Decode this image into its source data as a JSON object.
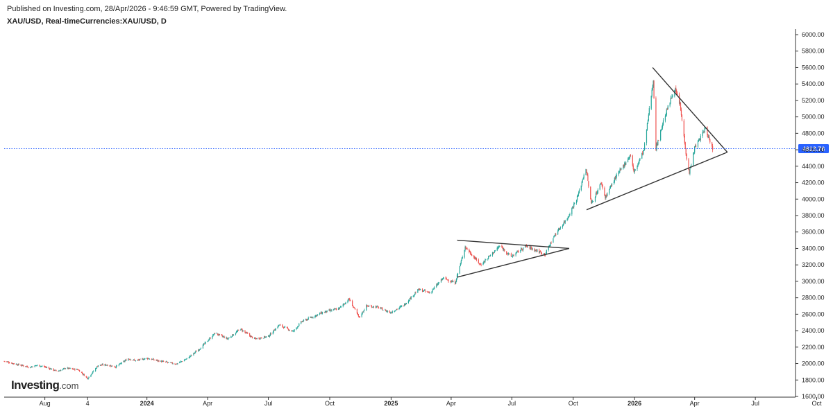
{
  "header": {
    "publish_line": "Published on Investing.com, 28/Apr/2026 - 9:46:59 GMT, Powered by TradingView.",
    "symbol_line": "XAU/USD, Real-timeCurrencies:XAU/USD, D"
  },
  "logo": {
    "brand": "Investing",
    "suffix": ".com"
  },
  "colors": {
    "up": "#26a69a",
    "down": "#ef5350",
    "price_line": "#2962ff",
    "price_label_bg": "#2962ff",
    "axis": "#333333",
    "trendline": "#333333"
  },
  "chart_data": {
    "type": "candlestick",
    "title": "XAU/USD, Real-timeCurrencies:XAU/USD, D",
    "ylim": [
      1600,
      6000
    ],
    "y_ticks": [
      "6000.00",
      "5800.00",
      "5600.00",
      "5400.00",
      "5200.00",
      "5000.00",
      "4800.00",
      "4600.00",
      "4400.00",
      "4200.00",
      "4000.00",
      "3800.00",
      "3600.00",
      "3400.00",
      "3200.00",
      "3000.00",
      "2800.00",
      "2600.00",
      "2400.00",
      "2200.00",
      "2000.00",
      "1800.00",
      "1600.00"
    ],
    "y_tick_values": [
      6000,
      5800,
      5600,
      5400,
      5200,
      5000,
      4800,
      4600,
      4400,
      4200,
      4000,
      3800,
      3600,
      3400,
      3200,
      3000,
      2800,
      2600,
      2400,
      2200,
      2000,
      1800,
      1600
    ],
    "x_range": [
      "2023-06-01",
      "2026-10-15"
    ],
    "x_ticks": [
      {
        "label": "Aug",
        "date": "2023-08-01",
        "bold": false
      },
      {
        "label": "4",
        "date": "2023-10-04",
        "bold": false
      },
      {
        "label": "2024",
        "date": "2024-01-01",
        "bold": true
      },
      {
        "label": "Apr",
        "date": "2024-04-01",
        "bold": false
      },
      {
        "label": "Jul",
        "date": "2024-07-01",
        "bold": false
      },
      {
        "label": "Oct",
        "date": "2024-10-01",
        "bold": false
      },
      {
        "label": "2025",
        "date": "2025-01-01",
        "bold": true
      },
      {
        "label": "Apr",
        "date": "2025-04-01",
        "bold": false
      },
      {
        "label": "Jul",
        "date": "2025-07-01",
        "bold": false
      },
      {
        "label": "Oct",
        "date": "2025-10-01",
        "bold": false
      },
      {
        "label": "2026",
        "date": "2026-01-01",
        "bold": true
      },
      {
        "label": "Apr",
        "date": "2026-04-01",
        "bold": false
      },
      {
        "label": "Jul",
        "date": "2026-07-01",
        "bold": false
      },
      {
        "label": "Oct",
        "date": "2026-10-01",
        "bold": false
      }
    ],
    "last_price": 4613.76,
    "last_price_label": "4613.76",
    "price_path": [
      [
        "2023-06-01",
        2030
      ],
      [
        "2023-06-20",
        1990
      ],
      [
        "2023-07-10",
        1955
      ],
      [
        "2023-07-20",
        1980
      ],
      [
        "2023-08-01",
        1960
      ],
      [
        "2023-08-20",
        1905
      ],
      [
        "2023-09-01",
        1945
      ],
      [
        "2023-09-20",
        1925
      ],
      [
        "2023-10-04",
        1820
      ],
      [
        "2023-10-20",
        1980
      ],
      [
        "2023-11-01",
        1985
      ],
      [
        "2023-11-15",
        1960
      ],
      [
        "2023-12-04",
        2060
      ],
      [
        "2023-12-15",
        2035
      ],
      [
        "2024-01-01",
        2065
      ],
      [
        "2024-01-20",
        2030
      ],
      [
        "2024-02-14",
        1995
      ],
      [
        "2024-03-01",
        2060
      ],
      [
        "2024-03-20",
        2180
      ],
      [
        "2024-04-12",
        2370
      ],
      [
        "2024-05-01",
        2300
      ],
      [
        "2024-05-20",
        2420
      ],
      [
        "2024-06-10",
        2300
      ],
      [
        "2024-07-01",
        2330
      ],
      [
        "2024-07-17",
        2470
      ],
      [
        "2024-08-07",
        2390
      ],
      [
        "2024-08-20",
        2510
      ],
      [
        "2024-09-20",
        2620
      ],
      [
        "2024-10-15",
        2670
      ],
      [
        "2024-10-30",
        2785
      ],
      [
        "2024-11-14",
        2560
      ],
      [
        "2024-11-25",
        2700
      ],
      [
        "2024-12-10",
        2690
      ],
      [
        "2024-12-31",
        2620
      ],
      [
        "2025-01-20",
        2710
      ],
      [
        "2025-02-11",
        2900
      ],
      [
        "2025-02-28",
        2860
      ],
      [
        "2025-03-20",
        3040
      ],
      [
        "2025-04-07",
        2980
      ],
      [
        "2025-04-22",
        3420
      ],
      [
        "2025-05-15",
        3200
      ],
      [
        "2025-06-13",
        3430
      ],
      [
        "2025-06-30",
        3300
      ],
      [
        "2025-07-22",
        3430
      ],
      [
        "2025-08-05",
        3380
      ],
      [
        "2025-08-20",
        3330
      ],
      [
        "2025-09-03",
        3560
      ],
      [
        "2025-09-23",
        3780
      ],
      [
        "2025-10-08",
        4040
      ],
      [
        "2025-10-20",
        4380
      ],
      [
        "2025-10-28",
        3940
      ],
      [
        "2025-11-12",
        4200
      ],
      [
        "2025-11-18",
        4020
      ],
      [
        "2025-12-01",
        4230
      ],
      [
        "2025-12-26",
        4540
      ],
      [
        "2025-12-31",
        4320
      ],
      [
        "2026-01-15",
        4600
      ],
      [
        "2026-01-29",
        5450
      ],
      [
        "2026-02-02",
        4620
      ],
      [
        "2026-02-15",
        5000
      ],
      [
        "2026-03-02",
        5350
      ],
      [
        "2026-03-10",
        5150
      ],
      [
        "2026-03-20",
        4500
      ],
      [
        "2026-03-24",
        4320
      ],
      [
        "2026-04-01",
        4620
      ],
      [
        "2026-04-17",
        4860
      ],
      [
        "2026-04-28",
        4614
      ]
    ],
    "trendlines": [
      {
        "from": [
          "2025-04-10",
          3500
        ],
        "to": [
          "2025-09-25",
          3400
        ]
      },
      {
        "from": [
          "2025-04-10",
          3050
        ],
        "to": [
          "2025-09-25",
          3400
        ]
      },
      {
        "from": [
          "2025-10-21",
          3870
        ],
        "to": [
          "2026-05-20",
          4570
        ]
      },
      {
        "from": [
          "2026-01-28",
          5600
        ],
        "to": [
          "2026-05-20",
          4570
        ]
      }
    ]
  }
}
